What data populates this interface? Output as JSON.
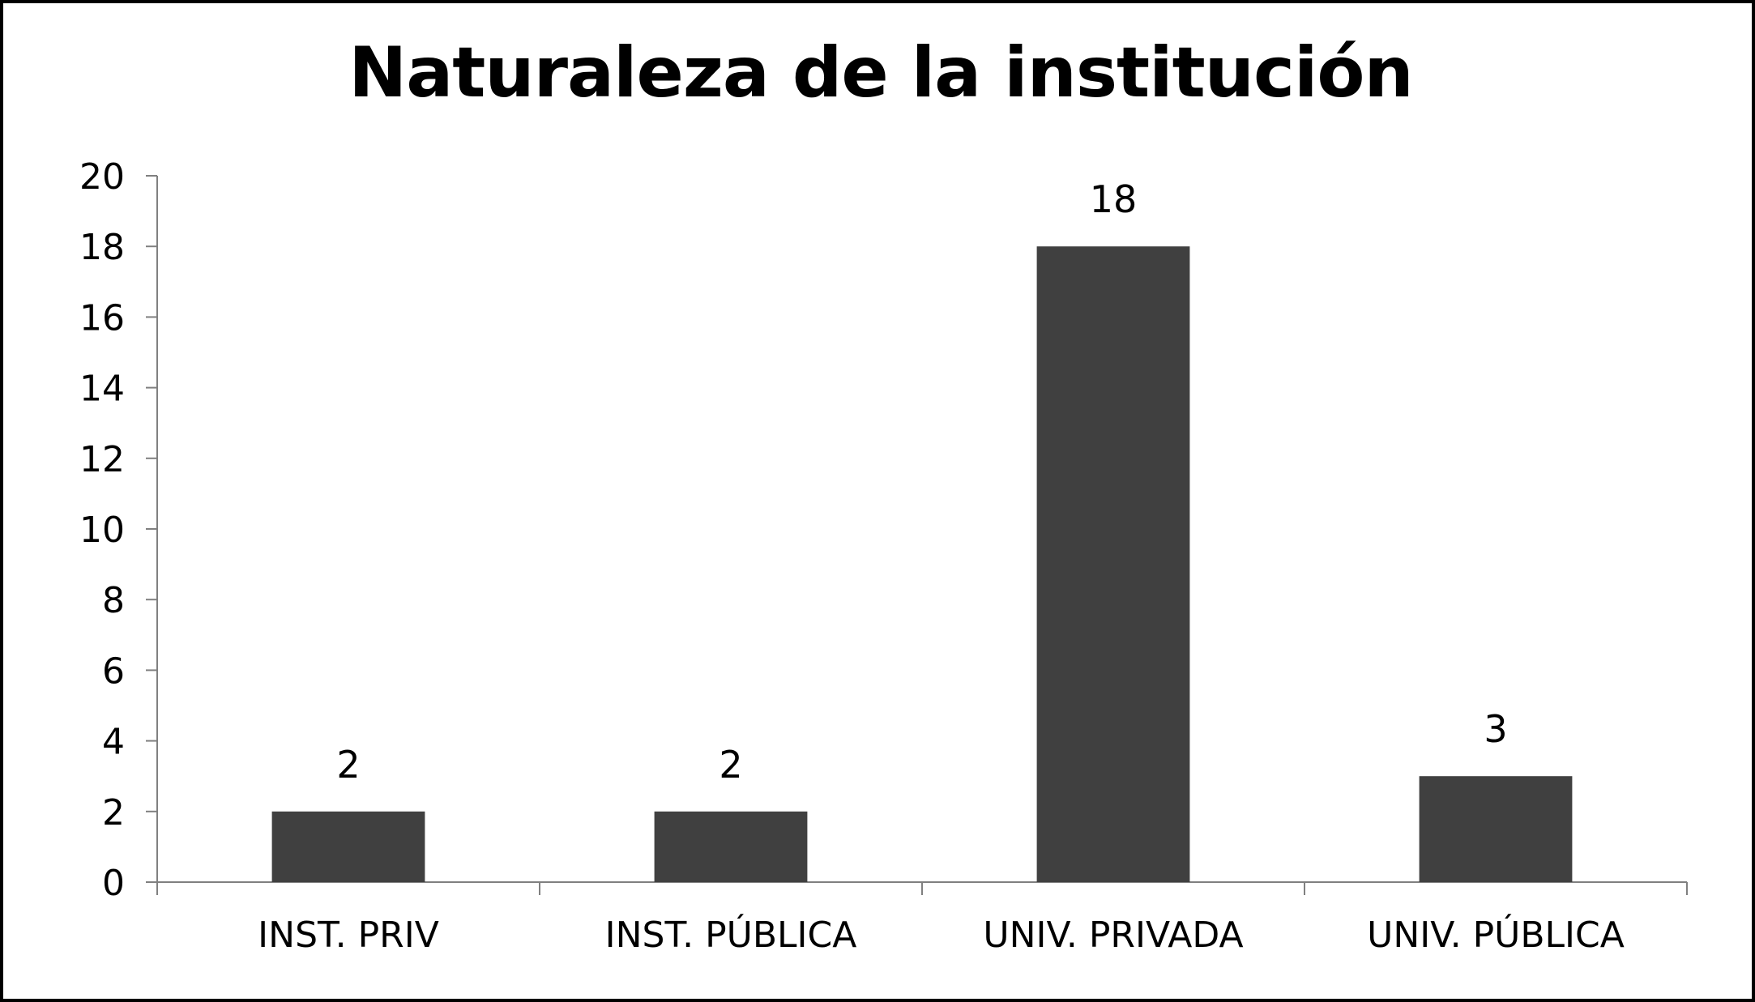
{
  "chart_data": {
    "type": "bar",
    "title": "Naturaleza de la institución",
    "xlabel": "",
    "ylabel": "",
    "categories": [
      "INST. PRIV",
      "INST. PÚBLICA",
      "UNIV. PRIVADA",
      "UNIV. PÚBLICA"
    ],
    "values": [
      2,
      2,
      18,
      3
    ],
    "data_labels": [
      "2",
      "2",
      "18",
      "3"
    ],
    "ylim": [
      0,
      20
    ],
    "yticks": [
      0,
      2,
      4,
      6,
      8,
      10,
      12,
      14,
      16,
      18,
      20
    ],
    "grid": false,
    "legend": "none",
    "bar_color": "#404040",
    "axis_color": "#808080"
  }
}
